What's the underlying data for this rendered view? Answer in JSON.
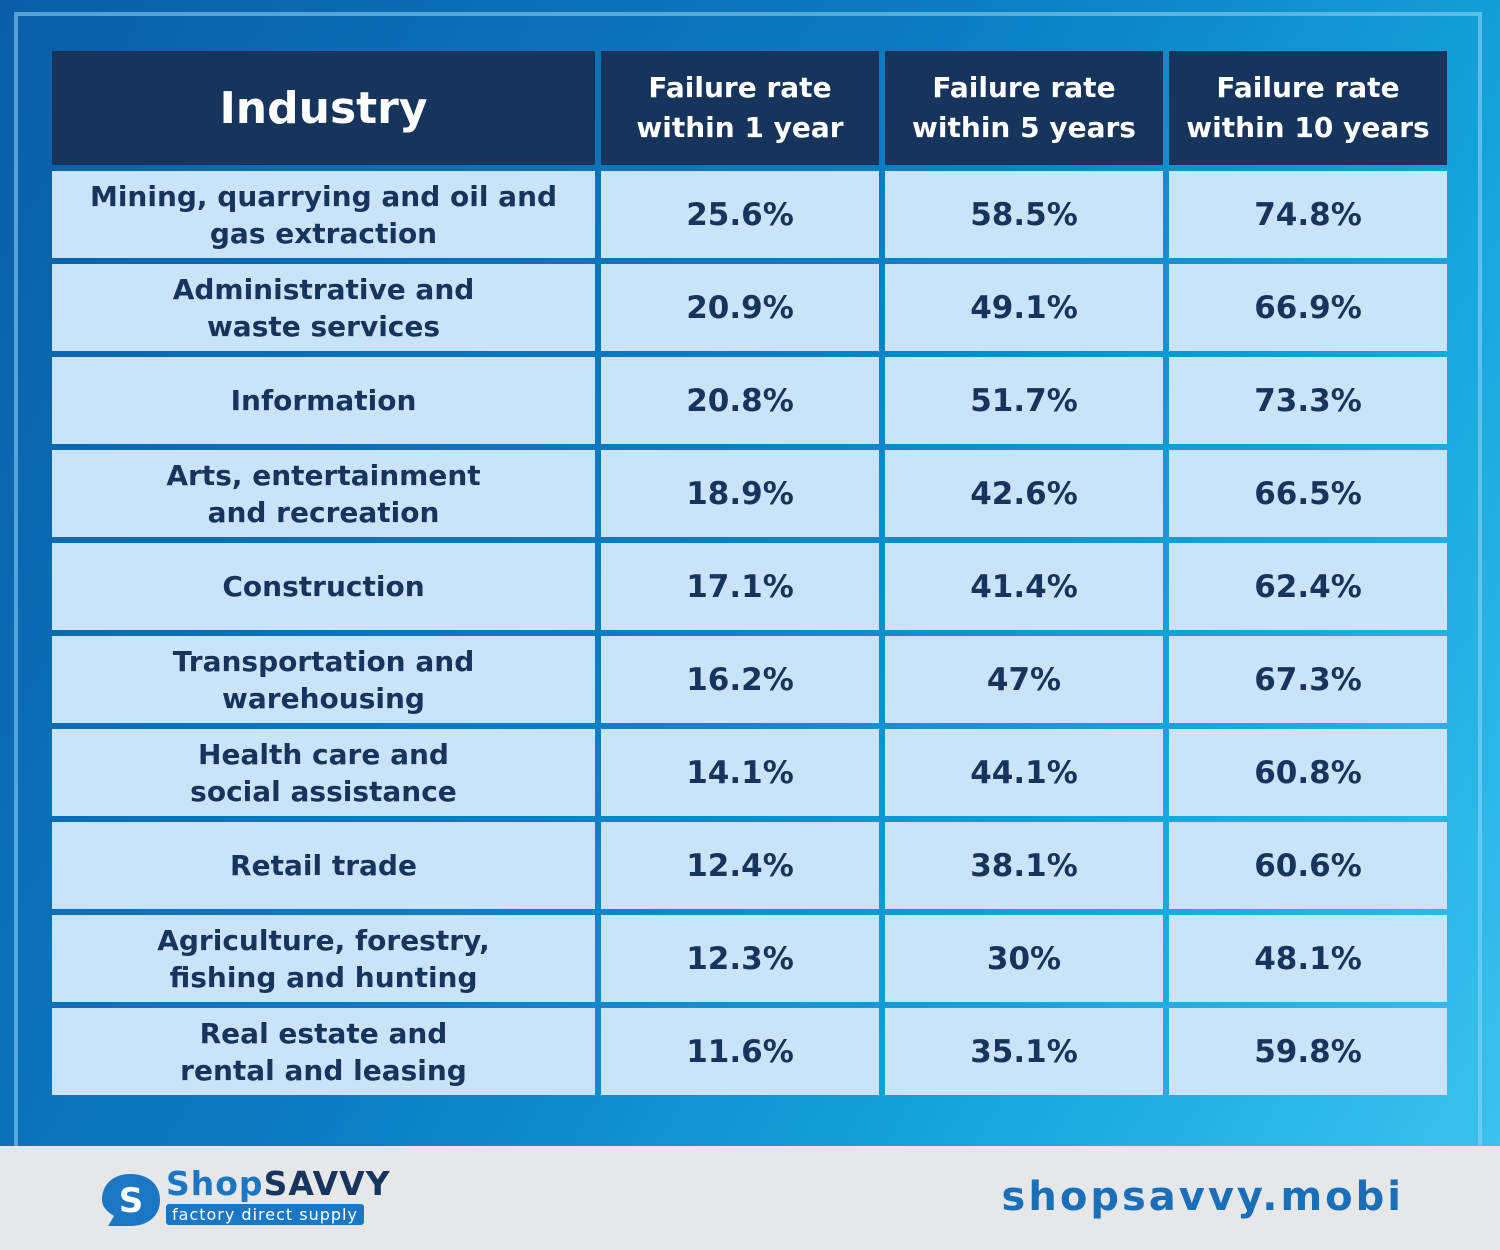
{
  "chart_data": {
    "type": "table",
    "columns": [
      "Industry",
      "Failure rate within 1 year",
      "Failure rate within 5 years",
      "Failure rate within 10 years"
    ],
    "column_lines": [
      [
        "Industry"
      ],
      [
        "Failure rate",
        "within 1 year"
      ],
      [
        "Failure rate",
        "within 5 years"
      ],
      [
        "Failure rate",
        "within 10 years"
      ]
    ],
    "rows": [
      {
        "industry": [
          "Mining, quarrying and oil and",
          "gas extraction"
        ],
        "values": [
          "25.6%",
          "58.5%",
          "74.8%"
        ]
      },
      {
        "industry": [
          "Administrative and",
          "waste services"
        ],
        "values": [
          "20.9%",
          "49.1%",
          "66.9%"
        ]
      },
      {
        "industry": [
          "Information"
        ],
        "values": [
          "20.8%",
          "51.7%",
          "73.3%"
        ]
      },
      {
        "industry": [
          "Arts, entertainment",
          "and recreation"
        ],
        "values": [
          "18.9%",
          "42.6%",
          "66.5%"
        ]
      },
      {
        "industry": [
          "Construction"
        ],
        "values": [
          "17.1%",
          "41.4%",
          "62.4%"
        ]
      },
      {
        "industry": [
          "Transportation and",
          "warehousing"
        ],
        "values": [
          "16.2%",
          "47%",
          "67.3%"
        ]
      },
      {
        "industry": [
          "Health care and",
          "social assistance"
        ],
        "values": [
          "14.1%",
          "44.1%",
          "60.8%"
        ]
      },
      {
        "industry": [
          "Retail trade"
        ],
        "values": [
          "12.4%",
          "38.1%",
          "60.6%"
        ]
      },
      {
        "industry": [
          "Agriculture, forestry,",
          "fishing and hunting"
        ],
        "values": [
          "12.3%",
          "30%",
          "48.1%"
        ]
      },
      {
        "industry": [
          "Real estate and",
          "rental and leasing"
        ],
        "values": [
          "11.6%",
          "35.1%",
          "59.8%"
        ]
      }
    ]
  },
  "footer": {
    "brand_part1": "Shop",
    "brand_part2": "SAVVY",
    "tagline": "factory direct supply",
    "website": "shopsavvy.mobi"
  },
  "colors": {
    "header_bg": "#16345c",
    "cell_bg": "#c9e3f8",
    "text_dark": "#16345c",
    "brand_blue": "#1b77c4"
  },
  "icons": {
    "logo": "shopsavvy-s-logo-icon"
  }
}
